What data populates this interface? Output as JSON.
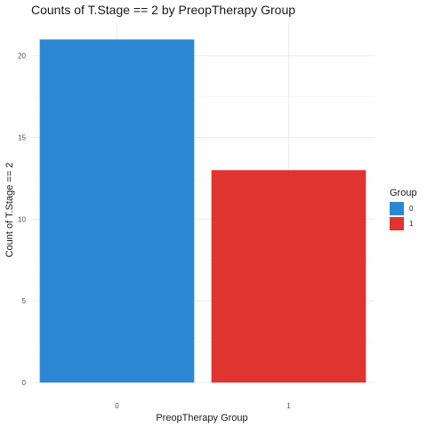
{
  "chart_data": {
    "type": "bar",
    "title": "Counts of T.Stage == 2 by PreopTherapy Group",
    "xlabel": "PreopTherapy Group",
    "ylabel": "Count of T.Stage == 2",
    "categories": [
      "0",
      "1"
    ],
    "values": [
      21,
      13
    ],
    "colors": [
      "#2b87d3",
      "#df3430"
    ],
    "ylim": [
      0,
      22
    ],
    "yticks": [
      0,
      5,
      10,
      15,
      20
    ],
    "grid": true,
    "legend": {
      "title": "Group",
      "position": "right",
      "entries": [
        {
          "label": "0",
          "color": "#2b87d3"
        },
        {
          "label": "1",
          "color": "#df3430"
        }
      ]
    }
  }
}
